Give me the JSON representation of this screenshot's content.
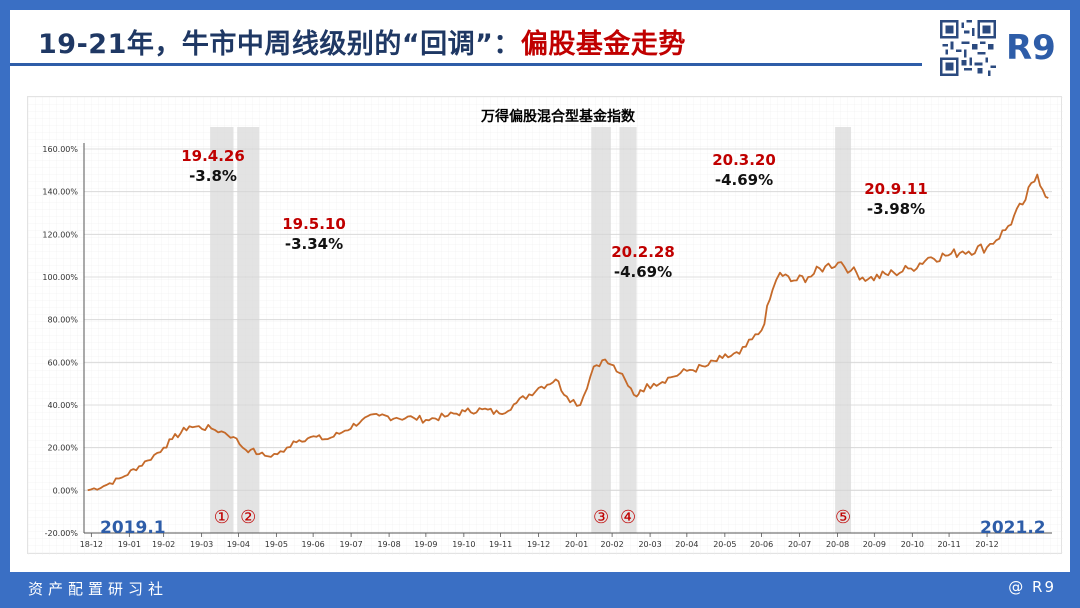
{
  "title": {
    "main": "19-21年，牛市中周线级别的“回调”：",
    "highlight": "偏股基金走势"
  },
  "brand": "R9",
  "footer": {
    "left": "资产配置研习社",
    "right": "@ R9"
  },
  "chart_data": {
    "type": "line",
    "title": "万得偏股混合型基金指数",
    "ylim": [
      -20,
      160
    ],
    "yticks": [
      "-20.00%",
      "0.00%",
      "20.00%",
      "40.00%",
      "60.00%",
      "80.00%",
      "100.00%",
      "120.00%",
      "140.00%",
      "160.00%"
    ],
    "ytick_values": [
      -20,
      0,
      20,
      40,
      60,
      80,
      100,
      120,
      140,
      160
    ],
    "xticks": [
      "18-12",
      "19-01",
      "19-02",
      "19-03",
      "19-04",
      "19-05",
      "19-06",
      "19-07",
      "19-08",
      "19-09",
      "19-10",
      "19-11",
      "19-12",
      "20-01",
      "20-02",
      "20-03",
      "20-04",
      "20-05",
      "20-06",
      "20-07",
      "20-08",
      "20-09",
      "20-10",
      "20-11",
      "20-12"
    ],
    "series": [
      {
        "color": "#c56a2a",
        "x": [
          "2018-12-28",
          "2019-01-10",
          "2019-01-25",
          "2019-02-15",
          "2019-02-28",
          "2019-03-07",
          "2019-03-21",
          "2019-04-08",
          "2019-04-19",
          "2019-04-26",
          "2019-05-06",
          "2019-05-10",
          "2019-05-17",
          "2019-05-24",
          "2019-06-06",
          "2019-06-14",
          "2019-06-28",
          "2019-07-12",
          "2019-07-26",
          "2019-08-09",
          "2019-08-23",
          "2019-09-06",
          "2019-09-20",
          "2019-09-30",
          "2019-10-18",
          "2019-11-01",
          "2019-11-15",
          "2019-11-29",
          "2019-12-13",
          "2019-12-31",
          "2020-01-14",
          "2020-01-23",
          "2020-02-03",
          "2020-02-14",
          "2020-02-21",
          "2020-02-28",
          "2020-03-06",
          "2020-03-13",
          "2020-03-20",
          "2020-03-23",
          "2020-04-03",
          "2020-04-17",
          "2020-04-30",
          "2020-05-15",
          "2020-05-29",
          "2020-06-12",
          "2020-06-30",
          "2020-07-09",
          "2020-07-15",
          "2020-07-24",
          "2020-08-07",
          "2020-08-21",
          "2020-09-03",
          "2020-09-11",
          "2020-09-25",
          "2020-10-16",
          "2020-10-30",
          "2020-11-13",
          "2020-11-27",
          "2020-12-11",
          "2020-12-31",
          "2021-01-15",
          "2021-01-29",
          "2021-02-10",
          "2021-02-19"
        ],
        "y": [
          0,
          2,
          6,
          14,
          20,
          24,
          30,
          29,
          27,
          25,
          19,
          19,
          17,
          16,
          18,
          23,
          25,
          24,
          28,
          33,
          35,
          34,
          34,
          33,
          35,
          37,
          38,
          36,
          41,
          48,
          52,
          44,
          40,
          58,
          61,
          59,
          55,
          49,
          44,
          47,
          50,
          53,
          56,
          58,
          62,
          64,
          75,
          94,
          102,
          98,
          100,
          105,
          107,
          103,
          99,
          102,
          104,
          109,
          110,
          112,
          114,
          122,
          134,
          148,
          137
        ]
      }
    ],
    "shaded_periods": [
      {
        "start": "2019-04-07",
        "end": "2019-04-26"
      },
      {
        "start": "2019-04-29",
        "end": "2019-05-17"
      },
      {
        "start": "2020-02-12",
        "end": "2020-02-28"
      },
      {
        "start": "2020-03-06",
        "end": "2020-03-20"
      },
      {
        "start": "2020-08-29",
        "end": "2020-09-11"
      }
    ],
    "annotations": [
      {
        "date": "19.4.26",
        "change": "-3.8%"
      },
      {
        "date": "19.5.10",
        "change": "-3.34%"
      },
      {
        "date": "20.2.28",
        "change": "-4.69%"
      },
      {
        "date": "20.3.20",
        "change": "-4.69%"
      },
      {
        "date": "20.9.11",
        "change": "-3.98%"
      }
    ],
    "circled_labels": [
      "①",
      "②",
      "③",
      "④",
      "⑤"
    ],
    "corner_labels": {
      "start": "2019.1",
      "end": "2021.2"
    }
  }
}
